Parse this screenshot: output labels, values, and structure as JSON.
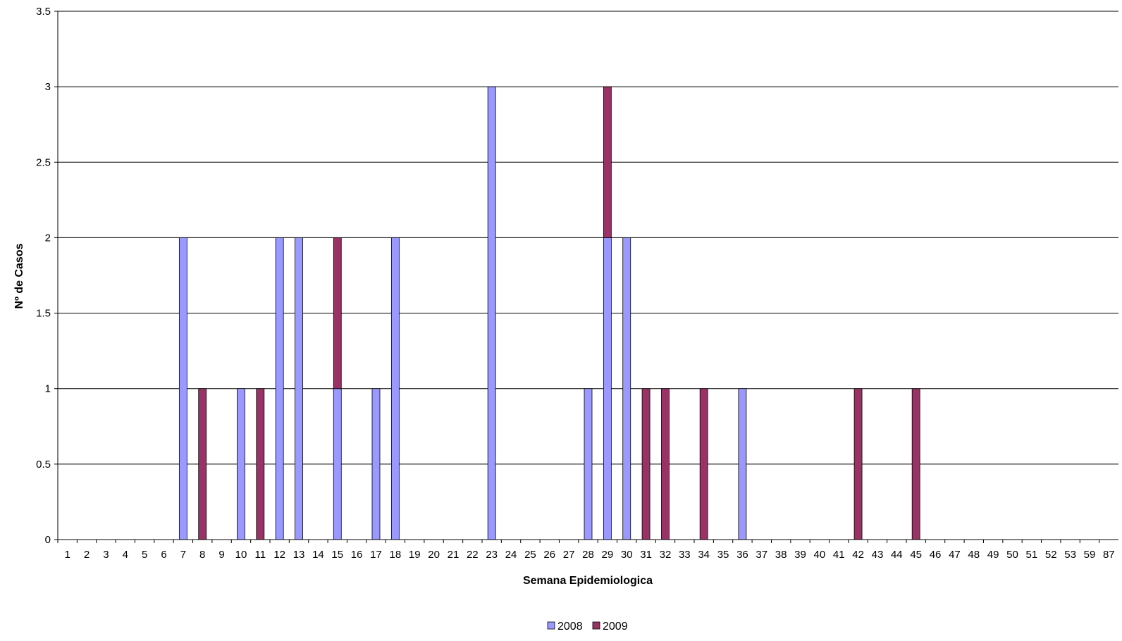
{
  "chart_data": {
    "type": "bar",
    "stacked": true,
    "title": "",
    "xlabel": "Semana Epidemiologica",
    "ylabel": "Nº de Casos",
    "ylim": [
      0,
      3.5
    ],
    "yticks": [
      "0",
      "0.5",
      "1",
      "1.5",
      "2",
      "2.5",
      "3",
      "3.5"
    ],
    "grid": true,
    "legend_position": "bottom",
    "categories": [
      "1",
      "2",
      "3",
      "4",
      "5",
      "6",
      "7",
      "8",
      "9",
      "10",
      "11",
      "12",
      "13",
      "14",
      "15",
      "16",
      "17",
      "18",
      "19",
      "20",
      "21",
      "22",
      "23",
      "24",
      "25",
      "26",
      "27",
      "28",
      "29",
      "30",
      "31",
      "32",
      "33",
      "34",
      "35",
      "36",
      "37",
      "38",
      "39",
      "40",
      "41",
      "42",
      "43",
      "44",
      "45",
      "46",
      "47",
      "48",
      "49",
      "50",
      "51",
      "52",
      "53",
      "59",
      "87"
    ],
    "series": [
      {
        "name": "2008",
        "color": "#9999ff",
        "values": [
          0,
          0,
          0,
          0,
          0,
          0,
          2,
          0,
          0,
          1,
          0,
          2,
          2,
          0,
          1,
          0,
          1,
          2,
          0,
          0,
          0,
          0,
          3,
          0,
          0,
          0,
          0,
          1,
          2,
          2,
          0,
          0,
          0,
          0,
          0,
          1,
          0,
          0,
          0,
          0,
          0,
          0,
          0,
          0,
          0,
          0,
          0,
          0,
          0,
          0,
          0,
          0,
          0,
          0,
          0
        ]
      },
      {
        "name": "2009",
        "color": "#993366",
        "values": [
          0,
          0,
          0,
          0,
          0,
          0,
          0,
          1,
          0,
          0,
          1,
          0,
          0,
          0,
          1,
          0,
          0,
          0,
          0,
          0,
          0,
          0,
          0,
          0,
          0,
          0,
          0,
          0,
          1,
          0,
          1,
          1,
          0,
          1,
          0,
          0,
          0,
          0,
          0,
          0,
          0,
          1,
          0,
          0,
          1,
          0,
          0,
          0,
          0,
          0,
          0,
          0,
          0,
          0,
          0
        ]
      }
    ]
  }
}
